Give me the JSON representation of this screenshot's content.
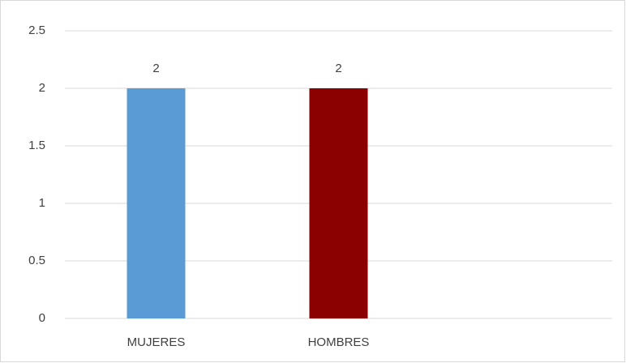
{
  "chart_data": {
    "type": "bar",
    "categories": [
      "MUJERES",
      "HOMBRES",
      null
    ],
    "values": [
      2,
      2,
      null
    ],
    "colors": [
      "#5b9bd5",
      "#8b0000"
    ],
    "ylim": [
      0,
      2.5
    ],
    "yticks": [
      0,
      0.5,
      1,
      1.5,
      2,
      2.5
    ],
    "grid": true
  }
}
